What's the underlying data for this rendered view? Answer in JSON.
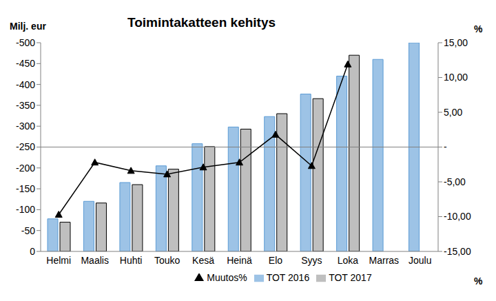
{
  "chart_data": {
    "type": "bar",
    "title": "Toimintakatteen kehitys",
    "y_label": "Milj. eur",
    "y2_label": "%",
    "y2_label_bottom": "%",
    "categories": [
      "Helmi",
      "Maalis",
      "Huhti",
      "Touko",
      "Kesä",
      "Heinä",
      "Elo",
      "Syys",
      "Loka",
      "Marras",
      "Joulu"
    ],
    "series": [
      {
        "name": "TOT 2016",
        "type": "bar",
        "color": "#9dc3e6",
        "values": [
          -78,
          -120,
          -165,
          -205,
          -258,
          -298,
          -323,
          -377,
          -420,
          -460,
          -500
        ]
      },
      {
        "name": "TOT 2017",
        "type": "bar",
        "color": "#bfbfbf",
        "values": [
          -70,
          -116,
          -160,
          -197,
          -251,
          -293,
          -330,
          -366,
          -470,
          null,
          null
        ]
      },
      {
        "name": "Muutos%",
        "type": "line",
        "axis": "y2",
        "color": "#000000",
        "marker": "triangle",
        "values": [
          -9.7,
          -2.2,
          -3.4,
          -3.9,
          -2.9,
          -2.2,
          1.8,
          -2.7,
          11.9,
          null,
          null
        ]
      }
    ],
    "ylim": [
      0,
      -500
    ],
    "yticks": [
      0,
      -50,
      -100,
      -150,
      -200,
      -250,
      -300,
      -350,
      -400,
      -450,
      -500
    ],
    "y2lim": [
      -15,
      15
    ],
    "y2ticks": [
      {
        "value": -15,
        "label": "-15,00"
      },
      {
        "value": -10,
        "label": "-10,00"
      },
      {
        "value": -5,
        "label": "-5,00"
      },
      {
        "value": 0,
        "label": "-"
      },
      {
        "value": 5,
        "label": "5,00"
      },
      {
        "value": 10,
        "label": "10,00"
      },
      {
        "value": 15,
        "label": "15,00"
      }
    ],
    "grid": false,
    "legend": "bottom"
  }
}
